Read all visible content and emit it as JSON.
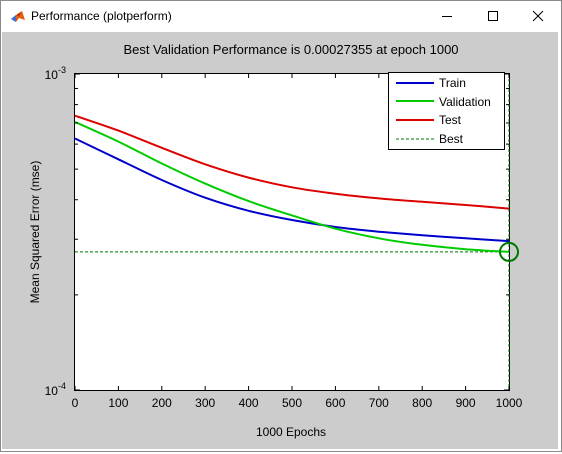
{
  "window": {
    "title": "Performance (plotperform)",
    "icon": "matlab-icon",
    "controls": [
      "minimize-icon",
      "maximize-icon",
      "close-icon"
    ]
  },
  "colors": {
    "figure_bg": "#cccccc",
    "train": "#0000cc",
    "validation": "#00cc00",
    "test": "#dd0000",
    "best": "#007700",
    "best_marker": "#007700"
  },
  "chart_data": {
    "type": "line",
    "title": "Best Validation Performance is 0.00027355 at epoch 1000",
    "xlabel": "1000 Epochs",
    "ylabel": "Mean Squared Error  (mse)",
    "xlim": [
      0,
      1000
    ],
    "ylim": [
      0.0001,
      0.001
    ],
    "yscale": "log",
    "xticks": [
      0,
      100,
      200,
      300,
      400,
      500,
      600,
      700,
      800,
      900,
      1000
    ],
    "yticks": [
      {
        "value": 0.001,
        "base": "10",
        "exp": "-3"
      },
      {
        "value": 0.0001,
        "base": "10",
        "exp": "-4"
      }
    ],
    "grid": false,
    "legend_position": "top-right",
    "series": [
      {
        "name": "Train",
        "x": [
          0,
          100,
          200,
          300,
          400,
          500,
          600,
          700,
          800,
          900,
          1000
        ],
        "y": [
          0.000625,
          0.000537,
          0.000462,
          0.000406,
          0.000369,
          0.000345,
          0.000328,
          0.000317,
          0.000309,
          0.000302,
          0.000296
        ]
      },
      {
        "name": "Validation",
        "x": [
          0,
          100,
          200,
          300,
          400,
          500,
          600,
          700,
          800,
          900,
          1000
        ],
        "y": [
          0.000705,
          0.000611,
          0.000521,
          0.00045,
          0.000396,
          0.000357,
          0.000324,
          0.000302,
          0.000288,
          0.000279,
          0.00027355
        ]
      },
      {
        "name": "Test",
        "x": [
          0,
          100,
          200,
          300,
          400,
          500,
          600,
          700,
          800,
          900,
          1000
        ],
        "y": [
          0.000738,
          0.000662,
          0.000584,
          0.000518,
          0.00047,
          0.000438,
          0.000418,
          0.000404,
          0.000394,
          0.000385,
          0.000375
        ]
      }
    ],
    "best": {
      "name": "Best",
      "epoch": 1000,
      "value": 0.00027355
    }
  }
}
